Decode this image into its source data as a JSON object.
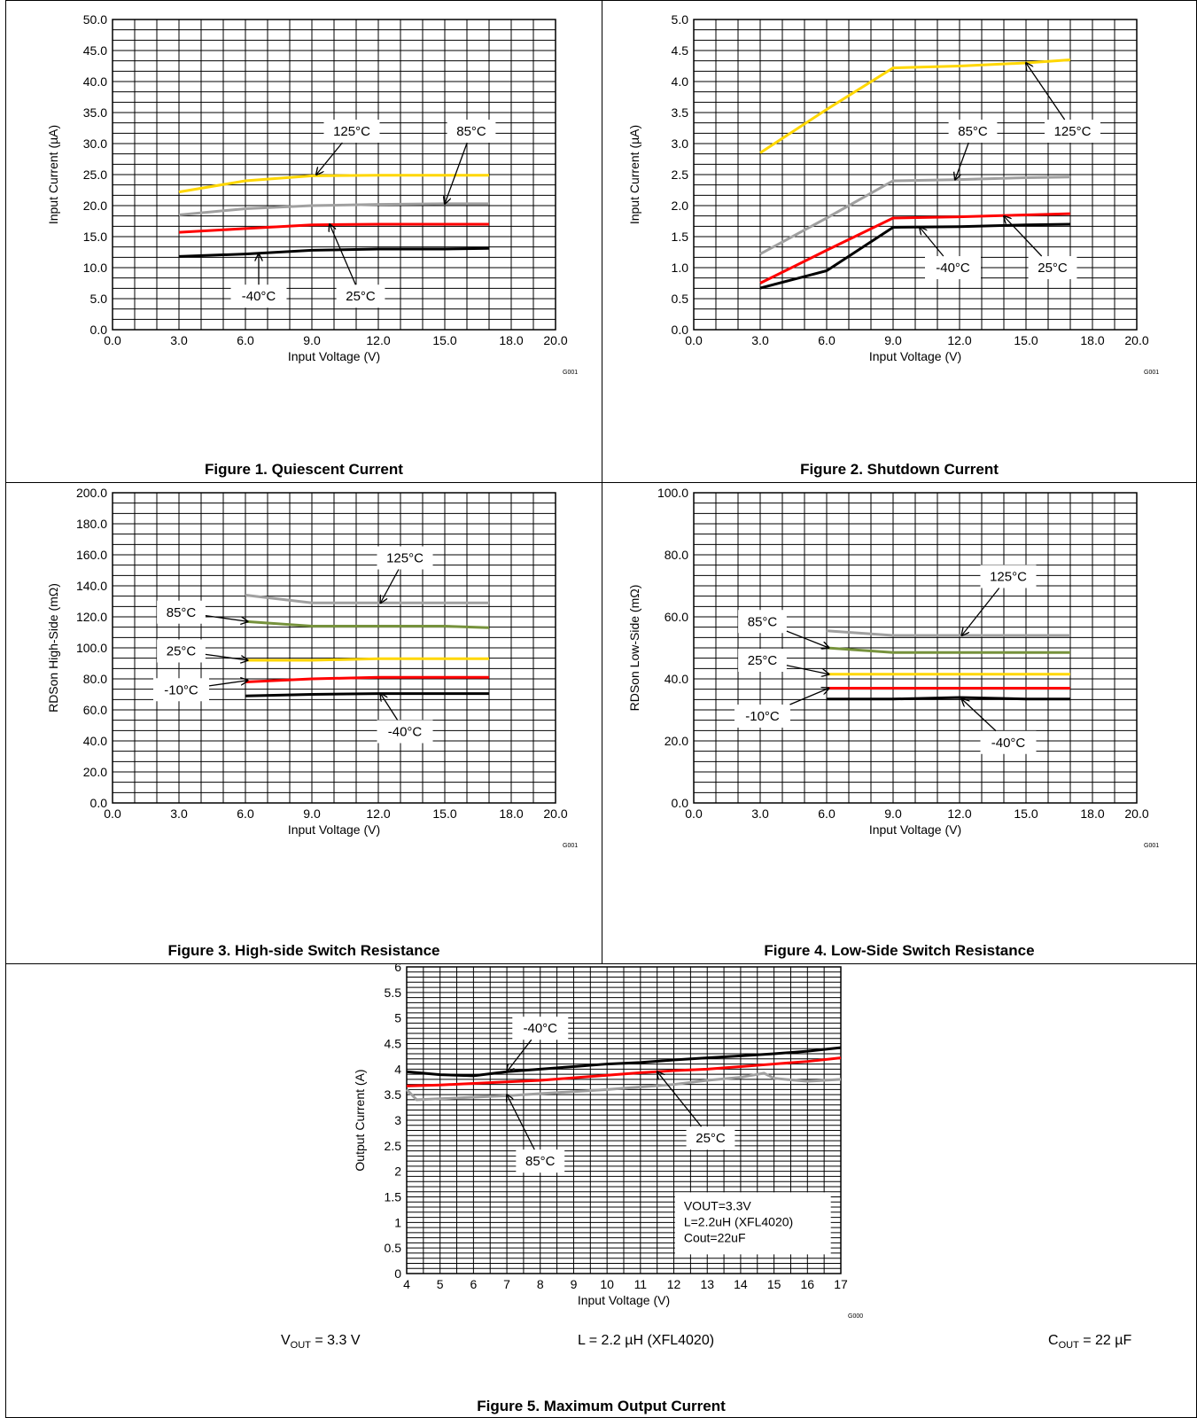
{
  "figures": [
    {
      "caption": "Figure 1. Quiescent Current"
    },
    {
      "caption": "Figure 2. Shutdown Current"
    },
    {
      "caption": "Figure 3. High-side Switch Resistance"
    },
    {
      "caption": "Figure 4. Low-Side Switch Resistance"
    },
    {
      "caption": "Figure 5. Maximum Output Current"
    }
  ],
  "conditions": {
    "vout_prefix": "V",
    "vout_sub": "OUT",
    "vout_value": " = 3.3 V",
    "inductor": "L = 2.2 µH (XFL4020)",
    "cout_prefix": "C",
    "cout_sub": "OUT",
    "cout_value": " = 22 µF"
  },
  "chart_data": [
    {
      "type": "line",
      "xlabel": "Input Voltage (V)",
      "ylabel": "Input Current (µA)",
      "xlim": [
        0,
        20
      ],
      "ylim": [
        0,
        50
      ],
      "xticks": [
        "0.0",
        "3.0",
        "6.0",
        "9.0",
        "12.0",
        "15.0",
        "18.0",
        "20.0"
      ],
      "yticks": [
        "0.0",
        "5.0",
        "10.0",
        "15.0",
        "20.0",
        "25.0",
        "30.0",
        "35.0",
        "40.0",
        "45.0",
        "50.0"
      ],
      "grid": true,
      "code": "G001",
      "series": [
        {
          "name": "125°C",
          "color": "#ffd700",
          "x": [
            3,
            6,
            9,
            12,
            15,
            17
          ],
          "y": [
            22.2,
            24,
            24.8,
            24.9,
            24.9,
            24.9
          ]
        },
        {
          "name": "85°C",
          "color": "#a0a0a0",
          "x": [
            3,
            6,
            9,
            12,
            15,
            17
          ],
          "y": [
            18.5,
            19.5,
            20,
            20.2,
            20.3,
            20.3
          ]
        },
        {
          "name": "25°C",
          "color": "#ff0000",
          "x": [
            3,
            6,
            9,
            12,
            15,
            17
          ],
          "y": [
            15.7,
            16.3,
            16.9,
            17,
            17,
            17
          ]
        },
        {
          "name": "-40°C",
          "color": "#000000",
          "x": [
            3,
            6,
            9,
            12,
            15,
            17
          ],
          "y": [
            11.8,
            12.2,
            12.8,
            13,
            13,
            13.1
          ]
        }
      ],
      "annotations": [
        {
          "text": "125°C",
          "tx": 10.8,
          "ty": 32,
          "ax": 9.2,
          "ay": 25
        },
        {
          "text": "85°C",
          "tx": 16.2,
          "ty": 32,
          "ax": 15,
          "ay": 20.3
        },
        {
          "text": "-40°C",
          "tx": 6.6,
          "ty": 5.4,
          "ax": 6.6,
          "ay": 12.2
        },
        {
          "text": "25°C",
          "tx": 11.2,
          "ty": 5.4,
          "ax": 9.8,
          "ay": 17
        }
      ]
    },
    {
      "type": "line",
      "xlabel": "Input Voltage (V)",
      "ylabel": "Input Current (µA)",
      "xlim": [
        0,
        20
      ],
      "ylim": [
        0,
        5
      ],
      "xticks": [
        "0.0",
        "3.0",
        "6.0",
        "9.0",
        "12.0",
        "15.0",
        "18.0",
        "20.0"
      ],
      "yticks": [
        "0.0",
        "0.5",
        "1.0",
        "1.5",
        "2.0",
        "2.5",
        "3.0",
        "3.5",
        "4.0",
        "4.5",
        "5.0"
      ],
      "grid": true,
      "code": "G001",
      "series": [
        {
          "name": "125°C",
          "color": "#ffd700",
          "x": [
            3,
            6,
            9,
            12,
            15,
            17
          ],
          "y": [
            2.85,
            3.55,
            4.22,
            4.25,
            4.3,
            4.35
          ]
        },
        {
          "name": "85°C",
          "color": "#a0a0a0",
          "x": [
            3,
            6,
            9,
            12,
            15,
            17
          ],
          "y": [
            1.22,
            1.8,
            2.4,
            2.42,
            2.45,
            2.46
          ]
        },
        {
          "name": "25°C",
          "color": "#ff0000",
          "x": [
            3,
            6,
            9,
            12,
            15,
            17
          ],
          "y": [
            0.75,
            1.28,
            1.8,
            1.82,
            1.85,
            1.87
          ]
        },
        {
          "name": "-40°C",
          "color": "#000000",
          "x": [
            3,
            6,
            9,
            12,
            15,
            17
          ],
          "y": [
            0.67,
            0.95,
            1.65,
            1.66,
            1.69,
            1.7
          ]
        }
      ],
      "annotations": [
        {
          "text": "85°C",
          "tx": 12.6,
          "ty": 3.2,
          "ax": 11.8,
          "ay": 2.42
        },
        {
          "text": "125°C",
          "tx": 17.1,
          "ty": 3.2,
          "ax": 15,
          "ay": 4.3
        },
        {
          "text": "-40°C",
          "tx": 11.7,
          "ty": 1.0,
          "ax": 10.2,
          "ay": 1.65
        },
        {
          "text": "25°C",
          "tx": 16.2,
          "ty": 1.0,
          "ax": 14,
          "ay": 1.83
        }
      ]
    },
    {
      "type": "line",
      "xlabel": "Input Voltage (V)",
      "ylabel": "RDSon High-Side (mΩ)",
      "xlim": [
        0,
        20
      ],
      "ylim": [
        0,
        200
      ],
      "xticks": [
        "0.0",
        "3.0",
        "6.0",
        "9.0",
        "12.0",
        "15.0",
        "18.0",
        "20.0"
      ],
      "yticks": [
        "0.0",
        "20.0",
        "40.0",
        "60.0",
        "80.0",
        "100.0",
        "120.0",
        "140.0",
        "160.0",
        "180.0",
        "200.0"
      ],
      "grid": true,
      "code": "G001",
      "series": [
        {
          "name": "125°C",
          "color": "#a0a0a0",
          "x": [
            6,
            9,
            12,
            15,
            17
          ],
          "y": [
            134,
            129,
            129,
            129,
            129
          ]
        },
        {
          "name": "85°C",
          "color": "#76923c",
          "x": [
            6,
            9,
            12,
            15,
            17
          ],
          "y": [
            117,
            114,
            114,
            114,
            113
          ]
        },
        {
          "name": "25°C",
          "color": "#ffd700",
          "x": [
            6,
            9,
            12,
            15,
            17
          ],
          "y": [
            92,
            92,
            93,
            93,
            93
          ]
        },
        {
          "name": "-10°C",
          "color": "#ff0000",
          "x": [
            6,
            9,
            12,
            15,
            17
          ],
          "y": [
            78,
            80,
            81,
            81,
            81
          ]
        },
        {
          "name": "-40°C",
          "color": "#000000",
          "x": [
            6,
            9,
            12,
            15,
            17
          ],
          "y": [
            69,
            70,
            70.5,
            70.5,
            70.5
          ]
        }
      ],
      "annotations": [
        {
          "text": "125°C",
          "tx": 13.2,
          "ty": 158,
          "ax": 12.1,
          "ay": 129
        },
        {
          "text": "85°C",
          "tx": 3.1,
          "ty": 123,
          "ax": 6.1,
          "ay": 117
        },
        {
          "text": "25°C",
          "tx": 3.1,
          "ty": 98,
          "ax": 6.1,
          "ay": 92
        },
        {
          "text": "-10°C",
          "tx": 3.1,
          "ty": 73,
          "ax": 6.1,
          "ay": 79
        },
        {
          "text": "-40°C",
          "tx": 13.2,
          "ty": 46,
          "ax": 12.1,
          "ay": 70.5
        }
      ]
    },
    {
      "type": "line",
      "xlabel": "Input Voltage (V)",
      "ylabel": "RDSon Low-Side (mΩ)",
      "xlim": [
        0,
        20
      ],
      "ylim": [
        0,
        100
      ],
      "xticks": [
        "0.0",
        "3.0",
        "6.0",
        "9.0",
        "12.0",
        "15.0",
        "18.0",
        "20.0"
      ],
      "yticks": [
        "0.0",
        "20.0",
        "40.0",
        "60.0",
        "80.0",
        "100.0"
      ],
      "grid": true,
      "code": "G001",
      "series": [
        {
          "name": "125°C",
          "color": "#a0a0a0",
          "x": [
            6,
            9,
            12,
            15,
            17
          ],
          "y": [
            55.5,
            54,
            54,
            54,
            54
          ]
        },
        {
          "name": "85°C",
          "color": "#76923c",
          "x": [
            6,
            9,
            12,
            15,
            17
          ],
          "y": [
            50,
            48.5,
            48.5,
            48.5,
            48.5
          ]
        },
        {
          "name": "25°C",
          "color": "#ffd700",
          "x": [
            6,
            9,
            12,
            15,
            17
          ],
          "y": [
            41.5,
            41.5,
            41.5,
            41.5,
            41.5
          ]
        },
        {
          "name": "-10°C",
          "color": "#ff0000",
          "x": [
            6,
            9,
            12,
            15,
            17
          ],
          "y": [
            37,
            37,
            37,
            37,
            37
          ]
        },
        {
          "name": "-40°C",
          "color": "#000000",
          "x": [
            6,
            9,
            12,
            15,
            17
          ],
          "y": [
            33.5,
            33.5,
            34,
            33.5,
            33.5
          ]
        }
      ],
      "annotations": [
        {
          "text": "125°C",
          "tx": 14.2,
          "ty": 73,
          "ax": 12.1,
          "ay": 54
        },
        {
          "text": "85°C",
          "tx": 3.1,
          "ty": 58.5,
          "ax": 6.1,
          "ay": 50
        },
        {
          "text": "25°C",
          "tx": 3.1,
          "ty": 46,
          "ax": 6.1,
          "ay": 41.5
        },
        {
          "text": "-10°C",
          "tx": 3.1,
          "ty": 28,
          "ax": 6.1,
          "ay": 37
        },
        {
          "text": "-40°C",
          "tx": 14.2,
          "ty": 19.5,
          "ax": 12.1,
          "ay": 33.5
        }
      ]
    },
    {
      "type": "line",
      "xlabel": "Input Voltage (V)",
      "ylabel": "Output Current (A)",
      "xlim": [
        4,
        17
      ],
      "ylim": [
        0,
        6
      ],
      "xticks": [
        "4",
        "5",
        "6",
        "7",
        "8",
        "9",
        "10",
        "11",
        "12",
        "13",
        "14",
        "15",
        "16",
        "17"
      ],
      "yticks": [
        "0",
        "0.5",
        "1",
        "1.5",
        "2",
        "2.5",
        "3",
        "3.5",
        "4",
        "4.5",
        "5",
        "5.5",
        "6"
      ],
      "grid": true,
      "code": "G000",
      "series": [
        {
          "name": "-40°C",
          "color": "#000000",
          "x": [
            4,
            5,
            6,
            7,
            8,
            9,
            10,
            11,
            12,
            13,
            14,
            15,
            16,
            17
          ],
          "y": [
            3.95,
            3.89,
            3.87,
            3.95,
            4.0,
            4.05,
            4.1,
            4.13,
            4.18,
            4.22,
            4.26,
            4.3,
            4.35,
            4.42
          ]
        },
        {
          "name": "25°C",
          "color": "#ff0000",
          "x": [
            4,
            5,
            6,
            7,
            8,
            9,
            10,
            11,
            12,
            13,
            14,
            15,
            16,
            17
          ],
          "y": [
            3.67,
            3.69,
            3.72,
            3.75,
            3.78,
            3.83,
            3.88,
            3.93,
            3.97,
            4.0,
            4.05,
            4.1,
            4.15,
            4.22
          ]
        },
        {
          "name": "85°C",
          "color": "#a0a0a0",
          "x": [
            4,
            4.3,
            5,
            6,
            7,
            8,
            9,
            10,
            11,
            12,
            13,
            14,
            14.7,
            15,
            16,
            17
          ],
          "y": [
            3.6,
            3.4,
            3.42,
            3.45,
            3.48,
            3.52,
            3.56,
            3.6,
            3.65,
            3.7,
            3.78,
            3.84,
            3.92,
            3.82,
            3.76,
            3.8
          ]
        }
      ],
      "annotations": [
        {
          "text": "-40°C",
          "tx": 8.0,
          "ty": 4.8,
          "ax": 7.0,
          "ay": 3.95
        },
        {
          "text": "25°C",
          "tx": 13.1,
          "ty": 2.65,
          "ax": 11.5,
          "ay": 3.95
        },
        {
          "text": "85°C",
          "tx": 8.0,
          "ty": 2.2,
          "ax": 7.0,
          "ay": 3.5
        }
      ],
      "note": [
        "VOUT=3.3V",
        "L=2.2uH (XFL4020)",
        "Cout=22uF"
      ]
    }
  ]
}
